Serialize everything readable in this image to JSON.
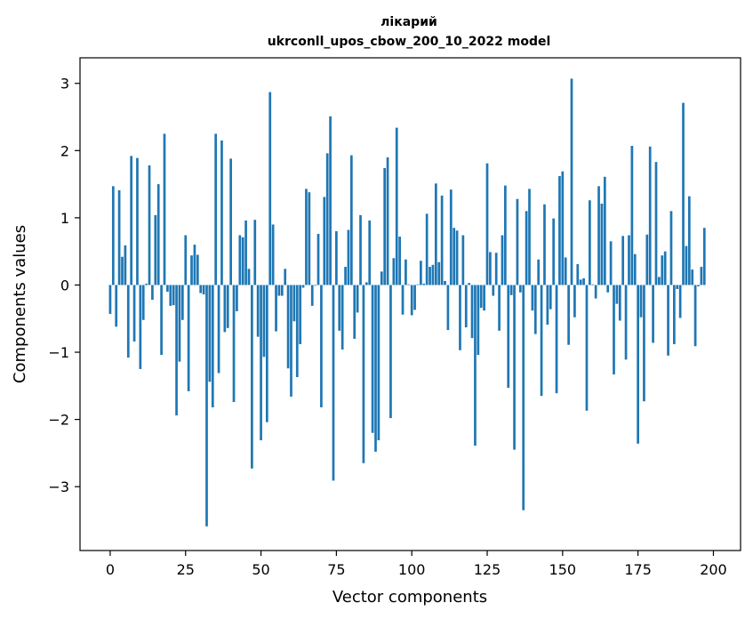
{
  "chart_data": {
    "type": "bar",
    "title": "лікарий",
    "subtitle": "ukrconll_upos_cbow_200_10_2022 model",
    "xlabel": "Vector components",
    "ylabel": "Components values",
    "xlim": [
      -10,
      209
    ],
    "ylim": [
      -3.95,
      3.38
    ],
    "xticks": [
      0,
      25,
      50,
      75,
      100,
      125,
      150,
      175,
      200
    ],
    "yticks": [
      -3,
      -2,
      -1,
      0,
      1,
      2,
      3
    ],
    "bar_color": "#1f77b4",
    "grid": false,
    "values": [
      -0.43,
      1.47,
      -0.62,
      1.41,
      0.42,
      0.59,
      -1.08,
      1.92,
      -0.84,
      1.89,
      -1.25,
      -0.52,
      0.02,
      1.78,
      -0.22,
      1.04,
      1.5,
      -1.04,
      2.25,
      -0.1,
      -0.31,
      -0.3,
      -1.94,
      -1.14,
      -0.52,
      0.74,
      -1.58,
      0.44,
      0.6,
      0.45,
      -0.12,
      -0.14,
      -3.59,
      -1.44,
      -1.82,
      2.25,
      -1.31,
      2.15,
      -0.7,
      -0.64,
      1.88,
      -1.74,
      -0.39,
      0.74,
      0.71,
      0.96,
      0.24,
      -2.73,
      0.97,
      -0.77,
      -2.31,
      -1.07,
      -2.04,
      2.87,
      0.9,
      -0.69,
      -0.16,
      -0.16,
      0.24,
      -1.24,
      -1.66,
      -0.54,
      -1.37,
      -0.88,
      -0.04,
      1.43,
      1.38,
      -0.31,
      -0.01,
      0.76,
      -1.82,
      1.31,
      1.96,
      2.51,
      -2.91,
      0.8,
      -0.68,
      -0.96,
      0.27,
      0.82,
      1.93,
      -0.8,
      -0.41,
      1.04,
      -2.65,
      0.04,
      0.96,
      -2.2,
      -2.48,
      -2.31,
      0.2,
      1.74,
      1.9,
      -1.98,
      0.4,
      2.34,
      0.72,
      -0.44,
      0.38,
      0.01,
      -0.45,
      -0.37,
      0.01,
      0.36,
      0.02,
      1.06,
      0.27,
      0.3,
      1.51,
      0.34,
      1.33,
      0.06,
      -0.67,
      1.42,
      0.85,
      0.81,
      -0.97,
      0.74,
      -0.63,
      0.03,
      -0.79,
      -2.39,
      -1.04,
      -0.34,
      -0.38,
      1.81,
      0.49,
      -0.16,
      0.48,
      -0.68,
      0.74,
      1.48,
      -1.53,
      -0.15,
      -2.45,
      1.28,
      -0.11,
      -3.35,
      1.1,
      1.43,
      -0.38,
      -0.73,
      0.38,
      -1.65,
      1.2,
      -0.59,
      -0.36,
      0.99,
      -1.61,
      1.62,
      1.69,
      0.41,
      -0.89,
      3.07,
      -0.48,
      0.31,
      0.08,
      0.1,
      -1.87,
      1.26,
      0.01,
      -0.2,
      1.47,
      1.21,
      1.61,
      -0.11,
      0.65,
      -1.33,
      -0.28,
      -0.53,
      0.73,
      -1.11,
      0.74,
      2.07,
      0.46,
      -2.36,
      -0.48,
      -1.73,
      0.75,
      2.06,
      -0.86,
      1.83,
      0.12,
      0.44,
      0.5,
      -1.05,
      1.1,
      -0.88,
      -0.06,
      -0.49,
      2.71,
      0.58,
      1.32,
      0.23,
      -0.91,
      -0.02,
      0.27,
      0.85
    ]
  }
}
